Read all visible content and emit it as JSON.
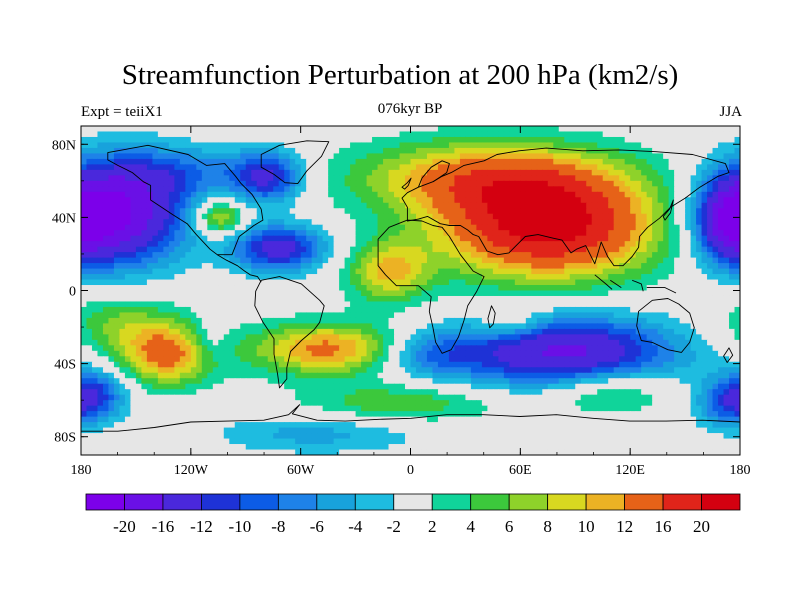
{
  "header": {
    "title": "Streamfunction Perturbation at 200 hPa (km2/s)",
    "left_string": "Expt = teiiX1",
    "center_string": "076kyr BP",
    "right_string": "JJA"
  },
  "map": {
    "lon_range": [
      -180,
      180
    ],
    "lat_range": [
      -90,
      90
    ],
    "x_ticks": [
      {
        "lon": -180,
        "label": "180"
      },
      {
        "lon": -120,
        "label": "120W"
      },
      {
        "lon": -60,
        "label": "60W"
      },
      {
        "lon": 0,
        "label": "0"
      },
      {
        "lon": 60,
        "label": "60E"
      },
      {
        "lon": 120,
        "label": "120E"
      },
      {
        "lon": 180,
        "label": "180"
      }
    ],
    "y_ticks": [
      {
        "lat": 80,
        "label": "80N"
      },
      {
        "lat": 40,
        "label": "40N"
      },
      {
        "lat": 0,
        "label": "0"
      },
      {
        "lat": -40,
        "label": "40S"
      },
      {
        "lat": -80,
        "label": "80S"
      }
    ]
  },
  "colorbar": {
    "labels": [
      "-20",
      "-16",
      "-12",
      "-10",
      "-8",
      "-6",
      "-4",
      "-2",
      "2",
      "4",
      "6",
      "8",
      "10",
      "12",
      "16",
      "20"
    ],
    "colors": [
      "#7c00ea",
      "#6a10e6",
      "#4a28dc",
      "#1e32d6",
      "#0c5ce6",
      "#1e82e8",
      "#18a2dc",
      "#1ebce0",
      "#e6e6e6",
      "#10d49a",
      "#3cc83c",
      "#8ed22a",
      "#d8d820",
      "#ecb224",
      "#e66218",
      "#e0241a",
      "#d40010"
    ]
  },
  "chart_data": {
    "type": "heatmap",
    "title": "Streamfunction Perturbation at 200 hPa (km2/s)",
    "variable": "Streamfunction Perturbation",
    "level": "200 hPa",
    "units": "km2/s",
    "season": "JJA",
    "time": "076kyr BP",
    "experiment": "teiiX1",
    "contour_levels": [
      -20,
      -16,
      -12,
      -10,
      -8,
      -6,
      -4,
      -2,
      2,
      4,
      6,
      8,
      10,
      12,
      16,
      20
    ],
    "centers": [
      {
        "lon": 75,
        "lat": 35,
        "value": 22,
        "sx": 42,
        "sy": 20
      },
      {
        "lon": 40,
        "lat": 62,
        "value": 12,
        "sx": 50,
        "sy": 14
      },
      {
        "lon": -12,
        "lat": 10,
        "value": 10,
        "sx": 16,
        "sy": 12
      },
      {
        "lon": -104,
        "lat": 40,
        "value": 10,
        "sx": 9,
        "sy": 7
      },
      {
        "lon": -45,
        "lat": -32,
        "value": 13,
        "sx": 30,
        "sy": 10
      },
      {
        "lon": -133,
        "lat": -35,
        "value": 13,
        "sx": 18,
        "sy": 12
      },
      {
        "lon": -160,
        "lat": -18,
        "value": 6,
        "sx": 22,
        "sy": 12
      },
      {
        "lon": 108,
        "lat": -55,
        "value": 7,
        "sx": 24,
        "sy": 9
      },
      {
        "lon": -5,
        "lat": -62,
        "value": 6,
        "sx": 40,
        "sy": 8
      },
      {
        "lon": 55,
        "lat": -18,
        "value": 5,
        "sx": 12,
        "sy": 6
      },
      {
        "lon": -160,
        "lat": 42,
        "value": -20,
        "sx": 26,
        "sy": 20
      },
      {
        "lon": 175,
        "lat": 38,
        "value": -14,
        "sx": 14,
        "sy": 16
      },
      {
        "lon": -72,
        "lat": 23,
        "value": -14,
        "sx": 18,
        "sy": 9
      },
      {
        "lon": -78,
        "lat": 62,
        "value": -12,
        "sx": 14,
        "sy": 10
      },
      {
        "lon": -125,
        "lat": 65,
        "value": -6,
        "sx": 30,
        "sy": 10
      },
      {
        "lon": 85,
        "lat": -34,
        "value": -17,
        "sx": 42,
        "sy": 14
      },
      {
        "lon": 10,
        "lat": -35,
        "value": -7,
        "sx": 20,
        "sy": 9
      },
      {
        "lon": -172,
        "lat": -57,
        "value": -10,
        "sx": 12,
        "sy": 10
      },
      {
        "lon": 172,
        "lat": -62,
        "value": -8,
        "sx": 12,
        "sy": 10
      },
      {
        "lon": -50,
        "lat": -78,
        "value": -5,
        "sx": 40,
        "sy": 8
      },
      {
        "lon": -110,
        "lat": -28,
        "value": -4,
        "sx": 8,
        "sy": 8
      }
    ]
  }
}
